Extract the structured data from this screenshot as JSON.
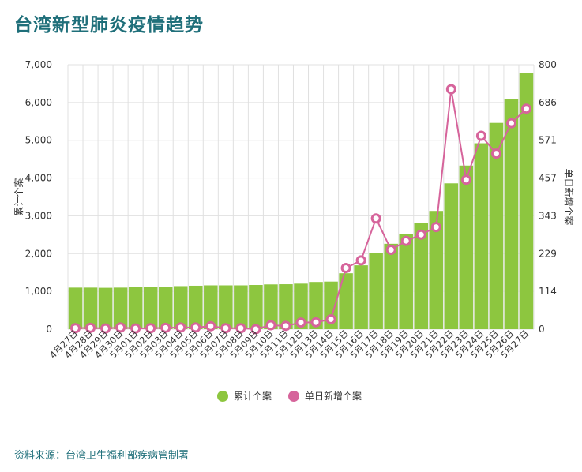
{
  "title": "台湾新型肺炎疫情趋势",
  "source": "资料来源：台湾卫生福利部疾病管制署",
  "colors": {
    "bar": "#8dc63f",
    "line": "#d6649b",
    "grid": "#e0e0e0",
    "title": "#1f6f7a"
  },
  "chart_data": {
    "type": "bar",
    "title": "台湾新型肺炎疫情趋势",
    "legend_position": "bottom-center",
    "grid": true,
    "categories": [
      "4月27日",
      "4月28日",
      "4月29日",
      "4月30日",
      "5月01日",
      "5月02日",
      "5月03日",
      "5月04日",
      "5月05日",
      "5月06日",
      "5月07日",
      "5月08日",
      "5月09日",
      "5月10日",
      "5月11日",
      "5月12日",
      "5月13日",
      "5月14日",
      "5月15日",
      "5月16日",
      "5月17日",
      "5月18日",
      "5月19日",
      "5月20日",
      "5月21日",
      "5月22日",
      "5月23日",
      "5月24日",
      "5月25日",
      "5月26日",
      "5月27日"
    ],
    "y_left": {
      "label": "累计个案",
      "ticks": [
        "0",
        "1,000",
        "2,000",
        "3,000",
        "4,000",
        "5,000",
        "6,000",
        "7,000"
      ],
      "range": [
        0,
        7000
      ]
    },
    "y_right": {
      "label": "单日新增个案",
      "ticks": [
        "0",
        "114",
        "229",
        "343",
        "457",
        "571",
        "686",
        "800"
      ],
      "range": [
        0,
        800
      ]
    },
    "series": [
      {
        "name": "累计个案",
        "type": "bar",
        "values": [
          1100,
          1100,
          1095,
          1100,
          1110,
          1115,
          1115,
          1140,
          1150,
          1160,
          1160,
          1160,
          1170,
          1185,
          1190,
          1205,
          1250,
          1260,
          1480,
          1690,
          2020,
          2260,
          2520,
          2820,
          3130,
          3860,
          4330,
          4920,
          5460,
          6090,
          6770
        ]
      },
      {
        "name": "单日新增个案",
        "type": "line",
        "values": [
          3,
          4,
          2,
          5,
          2,
          3,
          4,
          5,
          5,
          9,
          3,
          3,
          0,
          12,
          10,
          20,
          21,
          30,
          185,
          208,
          335,
          240,
          267,
          286,
          309,
          726,
          452,
          585,
          531,
          623,
          667
        ]
      }
    ]
  },
  "legend": [
    {
      "label": "累计个案",
      "color": "#8dc63f"
    },
    {
      "label": "单日新增个案",
      "color": "#d6649b"
    }
  ]
}
